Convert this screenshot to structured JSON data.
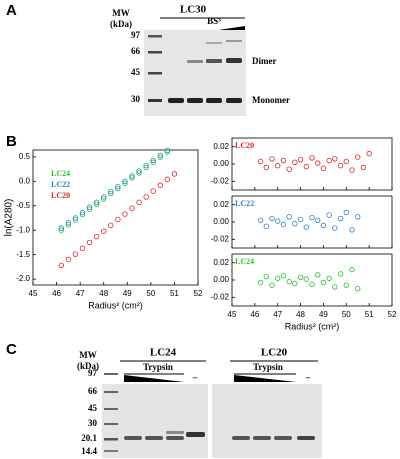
{
  "panel_labels": [
    "A",
    "B",
    "C"
  ],
  "gel_a": {
    "mw_label": "MW",
    "mw_unit": "(kDa)",
    "title": "LC30",
    "control_label": "–",
    "crosslinker_label": "BS³",
    "markers": [
      "97",
      "66",
      "45",
      "30"
    ],
    "band_labels": [
      "Dimer",
      "Monomer"
    ]
  },
  "gel_c": {
    "mw_label": "MW",
    "mw_unit": "(kDa)",
    "markers": [
      "97",
      "66",
      "45",
      "30",
      "20.1",
      "14.4"
    ],
    "gels": [
      {
        "title": "LC24",
        "treatment_label": "Trypsin",
        "control_label": "–"
      },
      {
        "title": "LC20",
        "treatment_label": "Trypsin",
        "control_label": "–"
      }
    ]
  },
  "chart_data": [
    {
      "type": "scatter",
      "x_label": "Radius² (cm²)",
      "y_label": "ln(A280)",
      "legend": "upper left",
      "xlim": [
        45,
        52
      ],
      "xticks": [
        45,
        46,
        47,
        48,
        49,
        50,
        51,
        52
      ],
      "ylim": [
        -2.12,
        0.64
      ],
      "yticks": [
        0.5,
        {
          "value": 0,
          "label": "0.0"
        },
        -0.5,
        {
          "value": -1,
          "label": "-1.0"
        },
        -1.5,
        {
          "value": -2,
          "label": "-2.0"
        }
      ],
      "series": [
        {
          "name": "LC24",
          "color": "#22c322",
          "x": [
            46.2,
            46.5,
            46.8,
            47.1,
            47.4,
            47.7,
            48.0,
            48.3,
            48.6,
            48.9,
            49.2,
            49.5,
            49.8,
            50.1,
            50.4,
            50.7
          ],
          "values": [
            -1.0,
            -0.89,
            -0.79,
            -0.68,
            -0.57,
            -0.47,
            -0.36,
            -0.25,
            -0.15,
            -0.04,
            0.07,
            0.17,
            0.28,
            0.39,
            0.49,
            0.6
          ]
        },
        {
          "name": "LC22",
          "color": "#2a7fd4",
          "x": [
            46.2,
            46.5,
            46.8,
            47.1,
            47.4,
            47.7,
            48.0,
            48.3,
            48.6,
            48.9,
            49.2,
            49.5,
            49.8,
            50.1,
            50.4,
            50.7
          ],
          "values": [
            -0.96,
            -0.85,
            -0.75,
            -0.64,
            -0.53,
            -0.43,
            -0.32,
            -0.21,
            -0.11,
            0.0,
            0.11,
            0.21,
            0.32,
            0.43,
            0.53,
            0.63
          ]
        },
        {
          "name": "LC20",
          "color": "#e02020",
          "x": [
            46.2,
            46.5,
            46.8,
            47.1,
            47.4,
            47.7,
            48.0,
            48.3,
            48.6,
            48.9,
            49.2,
            49.5,
            49.8,
            50.1,
            50.4,
            50.7,
            51.0
          ],
          "values": [
            -1.72,
            -1.6,
            -1.49,
            -1.37,
            -1.25,
            -1.13,
            -1.02,
            -0.9,
            -0.78,
            -0.67,
            -0.55,
            -0.43,
            -0.32,
            -0.2,
            -0.08,
            0.04,
            0.15
          ]
        }
      ]
    },
    {
      "type": "scatter",
      "show_xtick_labels": false,
      "xlim": [
        45,
        52
      ],
      "xticks": [
        45,
        46,
        47,
        48,
        49,
        50,
        51,
        52
      ],
      "ylim": [
        -0.03,
        0.03
      ],
      "yticks": [
        0.02,
        {
          "value": 0,
          "label": "0.00"
        },
        -0.02
      ],
      "series": [
        {
          "name": "LC20",
          "color": "#e02020",
          "x": [
            46.25,
            46.5,
            46.75,
            47,
            47.25,
            47.5,
            47.75,
            48,
            48.25,
            48.5,
            48.75,
            49,
            49.25,
            49.5,
            49.75,
            50,
            50.25,
            50.5,
            50.75,
            51
          ],
          "values": [
            0.003,
            -0.004,
            0.006,
            -0.002,
            0.004,
            -0.006,
            0.002,
            0.005,
            -0.003,
            0.007,
            0.001,
            -0.005,
            0.004,
            0.006,
            -0.002,
            0.003,
            -0.007,
            0.008,
            -0.004,
            0.012
          ]
        }
      ]
    },
    {
      "type": "scatter",
      "show_xtick_labels": false,
      "xlim": [
        45,
        52
      ],
      "xticks": [
        45,
        46,
        47,
        48,
        49,
        50,
        51,
        52
      ],
      "ylim": [
        -0.03,
        0.03
      ],
      "yticks": [
        0.02,
        {
          "value": 0,
          "label": "0.00"
        },
        -0.02
      ],
      "series": [
        {
          "name": "LC22",
          "color": "#2a7fd4",
          "x": [
            46.25,
            46.5,
            46.75,
            47,
            47.25,
            47.5,
            47.75,
            48,
            48.25,
            48.5,
            48.75,
            49,
            49.25,
            49.5,
            49.75,
            50,
            50.25,
            50.5
          ],
          "values": [
            0.002,
            -0.005,
            0.004,
            0.001,
            -0.003,
            0.006,
            -0.002,
            0.003,
            -0.006,
            0.005,
            0.002,
            -0.004,
            0.008,
            -0.007,
            0.004,
            0.011,
            -0.009,
            0.006
          ]
        }
      ]
    },
    {
      "type": "scatter",
      "show_xtick_labels": true,
      "x_label": "Radius² (cm²)",
      "xlim": [
        45,
        52
      ],
      "xticks": [
        45,
        46,
        47,
        48,
        49,
        50,
        51,
        52
      ],
      "ylim": [
        -0.03,
        0.03
      ],
      "yticks": [
        0.02,
        {
          "value": 0,
          "label": "0.00"
        },
        -0.02
      ],
      "series": [
        {
          "name": "LC24",
          "color": "#22c322",
          "x": [
            46.25,
            46.5,
            46.75,
            47,
            47.25,
            47.5,
            47.75,
            48,
            48.25,
            48.5,
            48.75,
            49,
            49.25,
            49.5,
            49.75,
            50,
            50.25,
            50.5
          ],
          "values": [
            -0.003,
            0.004,
            -0.006,
            0.002,
            0.005,
            -0.002,
            -0.004,
            0.003,
            0.001,
            -0.005,
            0.006,
            -0.003,
            0.002,
            -0.008,
            0.007,
            -0.006,
            0.012,
            -0.01
          ]
        }
      ]
    }
  ]
}
